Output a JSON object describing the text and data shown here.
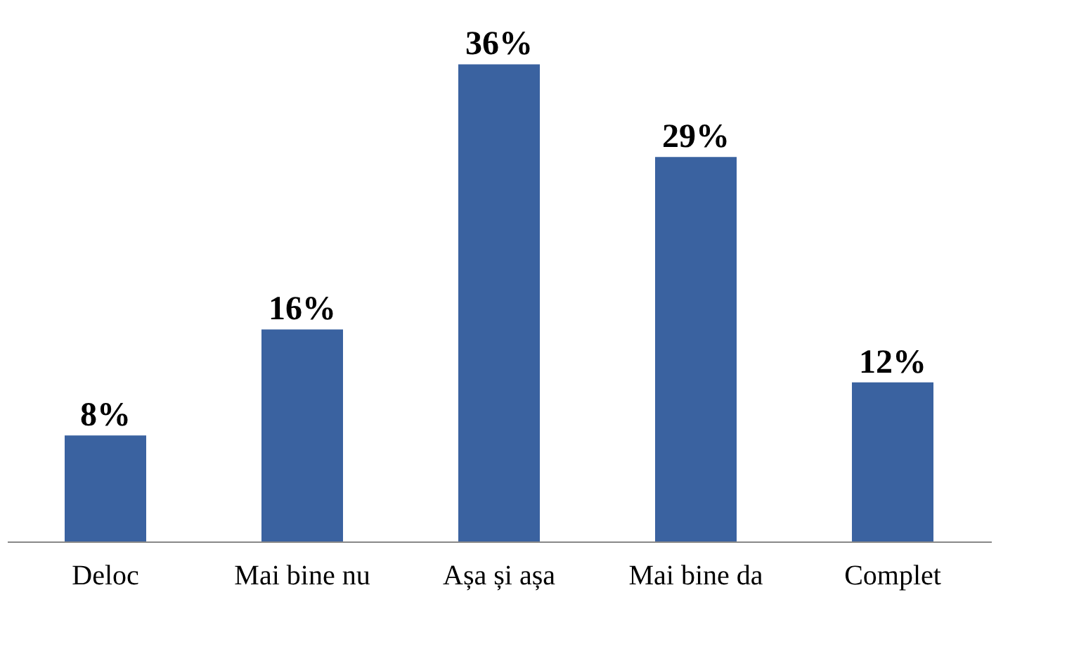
{
  "chart_data": {
    "type": "bar",
    "categories": [
      "Deloc",
      "Mai bine nu",
      "Așa și așa",
      "Mai bine da",
      "Complet"
    ],
    "values": [
      8,
      16,
      36,
      29,
      12
    ],
    "value_labels": [
      "8%",
      "16%",
      "36%",
      "29%",
      "12%"
    ],
    "color": "#3a62a0",
    "grid": false
  }
}
